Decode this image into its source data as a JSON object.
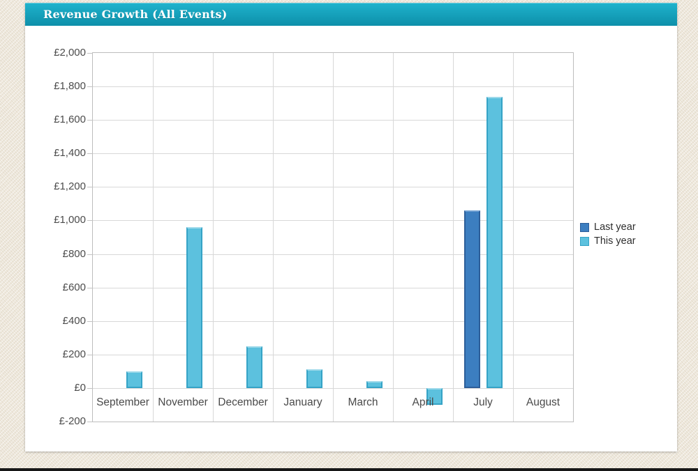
{
  "page": {
    "background_color": "#efe9dd",
    "footer_bar_color": "#171717"
  },
  "panel": {
    "title": "Revenue Growth (All Events)",
    "header_gradient_top": "#1fb3cd",
    "header_gradient_bottom": "#0d8fa9",
    "title_color": "#ffffff"
  },
  "chart_data": {
    "type": "bar",
    "title": "Revenue Growth (All Events)",
    "categories": [
      "September",
      "November",
      "December",
      "January",
      "March",
      "April",
      "July",
      "August"
    ],
    "series": [
      {
        "name": "Last year",
        "color": "#3c7ec0",
        "border_color": "#2d5e99",
        "border_top_color": "#6f9fd2",
        "values": [
          0,
          0,
          0,
          0,
          0,
          0,
          1060,
          0
        ]
      },
      {
        "name": "This year",
        "color": "#5cc1de",
        "border_color": "#35a3c6",
        "border_top_color": "#9ed9ea",
        "values": [
          100,
          960,
          250,
          110,
          40,
          -100,
          1740,
          0
        ]
      }
    ],
    "currency": "£",
    "ylim": [
      -200,
      2000
    ],
    "ytick_step": 200,
    "ytick_labels": [
      "£-200",
      "£0",
      "£200",
      "£400",
      "£600",
      "£800",
      "£1,000",
      "£1,200",
      "£1,400",
      "£1,600",
      "£1,800",
      "£2,000"
    ],
    "grid": true,
    "legend_position": "right",
    "axis_label_color": "#4c4c4c",
    "gridline_color": "#d8d8d8"
  }
}
